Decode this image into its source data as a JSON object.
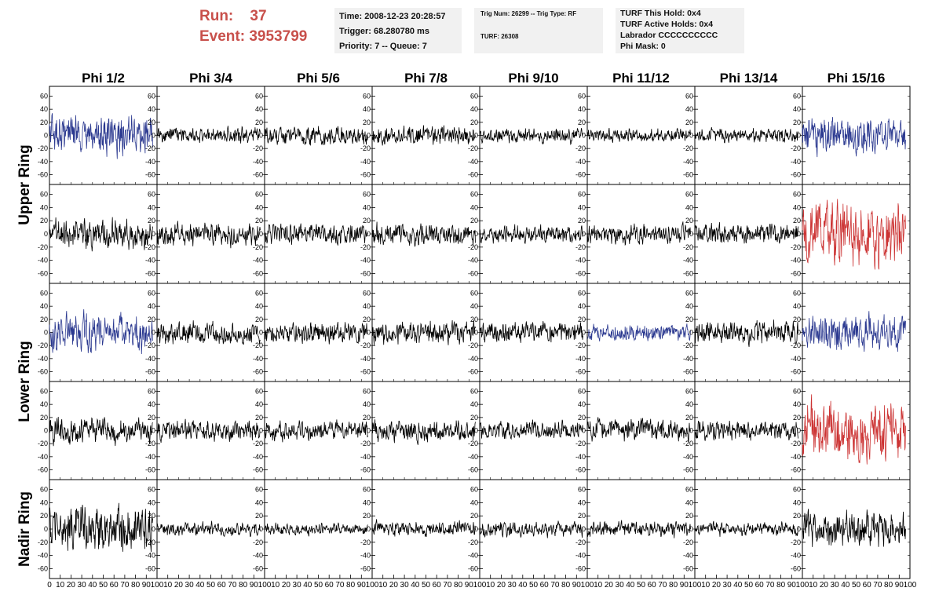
{
  "header": {
    "run_label": "Run:",
    "run_value": "37",
    "event_label": "Event:",
    "event_value": "3953799"
  },
  "info_box_1": {
    "time": "Time: 2008-12-23 20:28:57",
    "trigger": "Trigger: 68.280780 ms",
    "priority": "Priority: 7 -- Queue: 7"
  },
  "info_box_2": {
    "trig": "Trig Num: 26299 -- Trig Type: RF",
    "turf": "TURF: 26308"
  },
  "info_box_3": {
    "this_hold": "TURF This Hold: 0x4",
    "active_holds": "TURF Active Holds: 0x4",
    "labrador": "Labrador CCCCCCCCCC",
    "phi_mask": "Phi Mask: 0"
  },
  "colors": {
    "normal": "#000000",
    "triggered": "#2b3990",
    "masked": "#cc3333"
  },
  "chart_data": {
    "type": "line",
    "columns": [
      "Phi 1/2",
      "Phi 3/4",
      "Phi 5/6",
      "Phi 7/8",
      "Phi 9/10",
      "Phi 11/12",
      "Phi 13/14",
      "Phi 15/16"
    ],
    "ring_labels": [
      {
        "label": "Upper Ring",
        "rows": [
          0,
          1
        ]
      },
      {
        "label": "Lower Ring",
        "rows": [
          2,
          3
        ]
      },
      {
        "label": "Nadir Ring",
        "rows": [
          4,
          4
        ]
      }
    ],
    "y_ticks": [
      "60",
      "40",
      "20",
      "0",
      "-20",
      "-40",
      "-60"
    ],
    "y_tick_values": [
      60,
      40,
      20,
      0,
      -20,
      -40,
      -60
    ],
    "ylim": [
      -75,
      75
    ],
    "xlim": [
      0,
      100
    ],
    "x_ticks": [
      "0",
      "10",
      "20",
      "30",
      "40",
      "50",
      "60",
      "70",
      "80",
      "90",
      "100"
    ],
    "x_tick_values": [
      0,
      10,
      20,
      30,
      40,
      50,
      60,
      70,
      80,
      90,
      100
    ],
    "color_grid": [
      [
        "triggered",
        "normal",
        "normal",
        "normal",
        "normal",
        "normal",
        "normal",
        "triggered"
      ],
      [
        "normal",
        "normal",
        "normal",
        "normal",
        "normal",
        "normal",
        "normal",
        "masked"
      ],
      [
        "triggered",
        "normal",
        "normal",
        "normal",
        "normal",
        "triggered",
        "normal",
        "triggered"
      ],
      [
        "normal",
        "normal",
        "normal",
        "normal",
        "normal",
        "normal",
        "normal",
        "masked"
      ],
      [
        "normal",
        "normal",
        "normal",
        "normal",
        "normal",
        "normal",
        "normal",
        "normal"
      ]
    ],
    "amplitude_grid": [
      [
        30,
        12,
        14,
        14,
        11,
        10,
        11,
        28
      ],
      [
        22,
        17,
        16,
        17,
        14,
        15,
        15,
        48
      ],
      [
        28,
        18,
        17,
        17,
        16,
        12,
        17,
        28
      ],
      [
        20,
        16,
        15,
        16,
        14,
        16,
        15,
        44
      ],
      [
        34,
        10,
        9,
        11,
        11,
        12,
        10,
        27
      ]
    ]
  }
}
